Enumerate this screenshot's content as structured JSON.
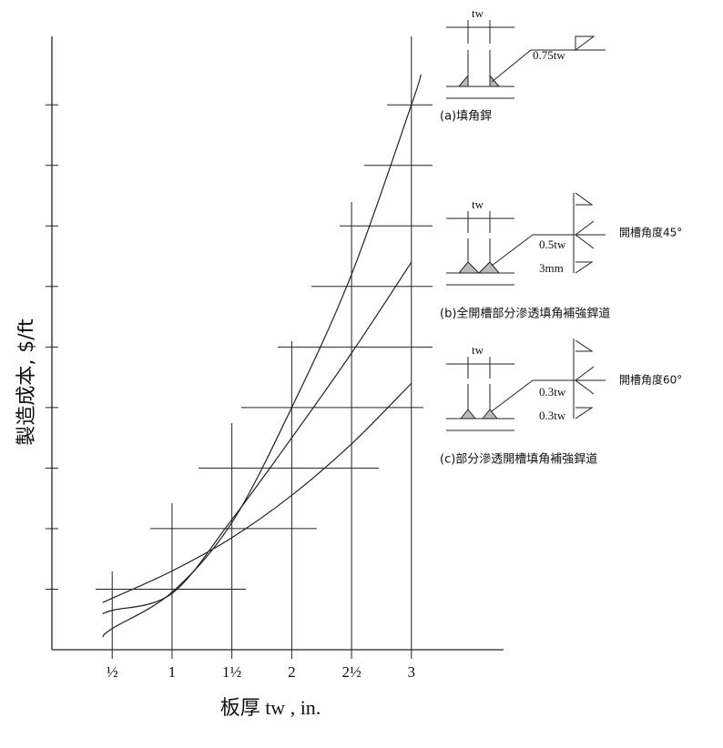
{
  "chart_data": {
    "type": "line",
    "y_label": "製造成本, $/ft",
    "x_label": "板厚  tw , in.",
    "xlim": [
      0,
      3.77
    ],
    "ylim": [
      0,
      10.1
    ],
    "xticks": [
      {
        "value": 0.5,
        "label": "½"
      },
      1,
      {
        "value": 1.5,
        "label": "1½"
      },
      2,
      {
        "value": 2.5,
        "label": "2½"
      },
      3
    ],
    "yticks": [
      1,
      2,
      3,
      4,
      5,
      6,
      7,
      8,
      9
    ],
    "ytick_labels": false,
    "series": [
      {
        "color": "#222222",
        "x": [
          0.42,
          0.5,
          1,
          1.5,
          2,
          2.5,
          3,
          3.08
        ],
        "values": [
          0.21,
          0.35,
          0.95,
          2.1,
          4.0,
          6.2,
          9.0,
          9.5
        ]
      },
      {
        "color": "#222222",
        "x": [
          0.42,
          0.5,
          1,
          1.5,
          2,
          2.5,
          3
        ],
        "values": [
          0.59,
          0.65,
          0.93,
          2.15,
          3.5,
          4.9,
          6.4
        ]
      },
      {
        "color": "#222222",
        "x": [
          0.42,
          0.5,
          1,
          1.5,
          2,
          2.5,
          3
        ],
        "values": [
          0.78,
          0.85,
          1.3,
          1.85,
          2.55,
          3.4,
          4.4
        ]
      }
    ],
    "annotations": [
      "tw",
      "0.75tw",
      "(a)填角銲",
      "tw",
      "0.5tw",
      "3mm",
      "開槽角度45°",
      "(b)全開槽部分滲透填角補強銲道",
      "tw",
      "0.3tw",
      "0.3tw",
      "開槽角度60°",
      "(c)部分滲透開槽填角補強銲道"
    ]
  }
}
